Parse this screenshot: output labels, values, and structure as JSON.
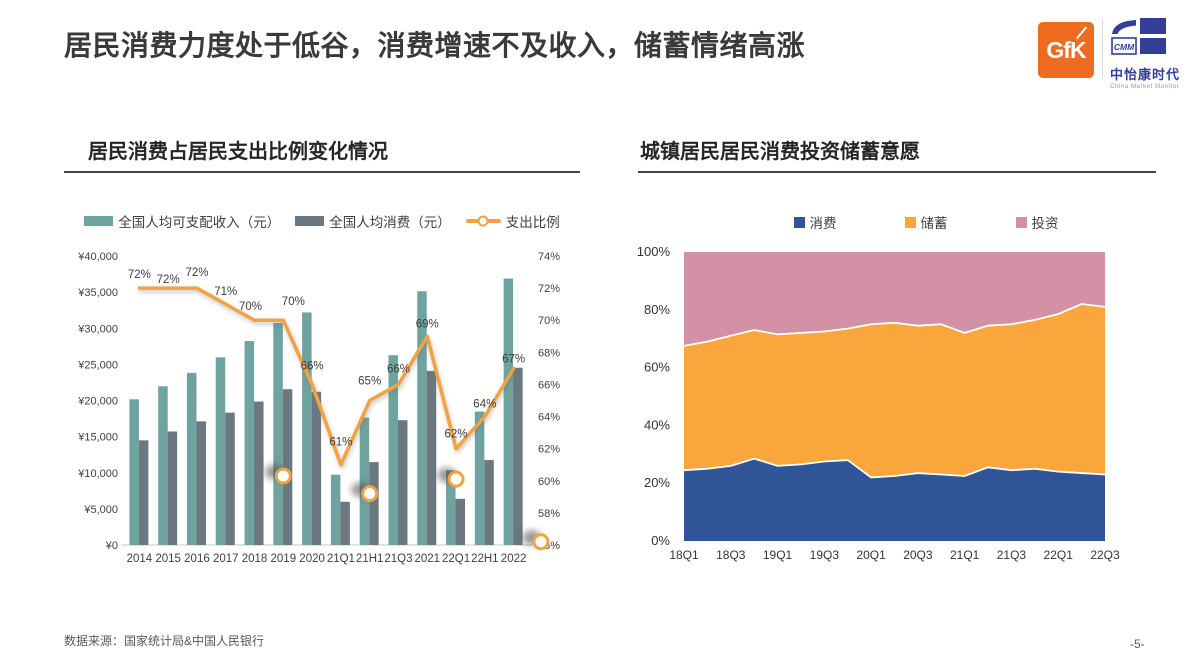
{
  "page": {
    "title": "居民消费力度处于低谷，消费增速不及收入，储蓄情绪高涨",
    "footer": "数据来源：国家统计局&中国人民银行",
    "page_number": "-5-"
  },
  "logos": {
    "gfk_text": "GfK",
    "gfk_color": "#EE6B1F",
    "cmm_abbr": "CMM",
    "cmm_name": "中怡康时代",
    "cmm_tagline": "China Market Monitor",
    "cmm_color": "#333F94"
  },
  "chart_data": [
    {
      "type": "bar+line",
      "title": "居民消费占居民支出比例变化情况",
      "legend_position": "top",
      "categories": [
        "2014",
        "2015",
        "2016",
        "2017",
        "2018",
        "2019",
        "2020",
        "21Q1",
        "21H1",
        "21Q3",
        "2021",
        "22Q1",
        "22H1",
        "2022"
      ],
      "series": [
        {
          "name": "全国人均可支配收入（元）",
          "type": "bar",
          "color": "#6EA3A0",
          "values": [
            20167,
            21966,
            23821,
            25974,
            28228,
            30733,
            32189,
            9730,
            17642,
            26265,
            35128,
            10345,
            18463,
            36883
          ]
        },
        {
          "name": "全国人均消费（元）",
          "type": "bar",
          "color": "#6C7880",
          "values": [
            14491,
            15712,
            17111,
            18322,
            19853,
            21559,
            21210,
            5978,
            11471,
            17275,
            24100,
            6393,
            11756,
            24538
          ]
        },
        {
          "name": "支出比例",
          "type": "line",
          "color": "#F0A33F",
          "axis": "right",
          "values": [
            72,
            72,
            72,
            71,
            70,
            70,
            66,
            61,
            65,
            66,
            69,
            62,
            64,
            67
          ],
          "point_labels": [
            "72%",
            "72%",
            "72%",
            "71%",
            "70%",
            "70%",
            "66%",
            "61%",
            "65%",
            "66%",
            "69%",
            "62%",
            "64%",
            "67%"
          ]
        }
      ],
      "left_axis": {
        "min": 0,
        "max": 40000,
        "tick_values": [
          40000,
          35000,
          30000,
          25000,
          20000,
          15000,
          10000,
          5000,
          0
        ],
        "tick_labels": [
          "¥40,000",
          "¥35,000",
          "¥30,000",
          "¥25,000",
          "¥20,000",
          "¥15,000",
          "¥10,000",
          "¥5,000",
          "¥0"
        ]
      },
      "right_axis": {
        "min": 56,
        "max": 74,
        "tick_values": [
          74,
          72,
          70,
          68,
          66,
          64,
          62,
          60,
          58,
          56
        ],
        "tick_labels": [
          "74%",
          "72%",
          "70%",
          "68%",
          "66%",
          "64%",
          "62%",
          "60%",
          "58%",
          "56%"
        ]
      },
      "ghost_markers": [
        {
          "index": 5,
          "value": 60.3
        },
        {
          "index": 8,
          "value": 59.2
        },
        {
          "index": 11,
          "value": 60.1
        },
        {
          "index": 13.95,
          "value": 56.2
        }
      ],
      "axis_line_color": "#C8C8C8",
      "grid": false
    },
    {
      "type": "area",
      "title": "城镇居民居民消费投资储蓄意愿",
      "stacked": true,
      "legend_position": "top",
      "x": [
        "18Q1",
        "18Q2",
        "18Q3",
        "18Q4",
        "19Q1",
        "19Q2",
        "19Q3",
        "19Q4",
        "20Q1",
        "20Q2",
        "20Q3",
        "20Q4",
        "21Q1",
        "21Q2",
        "21Q3",
        "21Q4",
        "22Q1",
        "22Q2",
        "22Q3"
      ],
      "x_tick_labels": [
        "18Q1",
        "18Q3",
        "19Q1",
        "19Q3",
        "20Q1",
        "20Q3",
        "21Q1",
        "21Q3",
        "22Q1",
        "22Q3"
      ],
      "series": [
        {
          "name": "消费",
          "color": "#2F5597",
          "values": [
            24.5,
            25,
            26,
            28.5,
            26,
            26.5,
            27.5,
            28,
            22,
            22.5,
            23.5,
            23,
            22.5,
            25.5,
            24.5,
            25,
            24,
            23.5,
            23
          ]
        },
        {
          "name": "储蓄",
          "color": "#F9A63C",
          "values": [
            43,
            44,
            45,
            44.5,
            45.5,
            45.5,
            45,
            45.5,
            53,
            53,
            51,
            52,
            49.5,
            49,
            50.5,
            51.5,
            54.5,
            58.5,
            58
          ]
        },
        {
          "name": "投资",
          "color": "#D391A6",
          "values": [
            32.5,
            31,
            29,
            27,
            28.5,
            28,
            27.5,
            26.5,
            25,
            24.5,
            25.5,
            25,
            28,
            25.5,
            25,
            23.5,
            21.5,
            18,
            19
          ]
        }
      ],
      "y_axis": {
        "min": 0,
        "max": 100,
        "tick_values": [
          100,
          80,
          60,
          40,
          20,
          0
        ],
        "tick_labels": [
          "100%",
          "80%",
          "60%",
          "40%",
          "20%",
          "0%"
        ]
      },
      "ylim": [
        0,
        100
      ],
      "boundary_line_color": "#FFFFFF",
      "grid": false
    }
  ]
}
